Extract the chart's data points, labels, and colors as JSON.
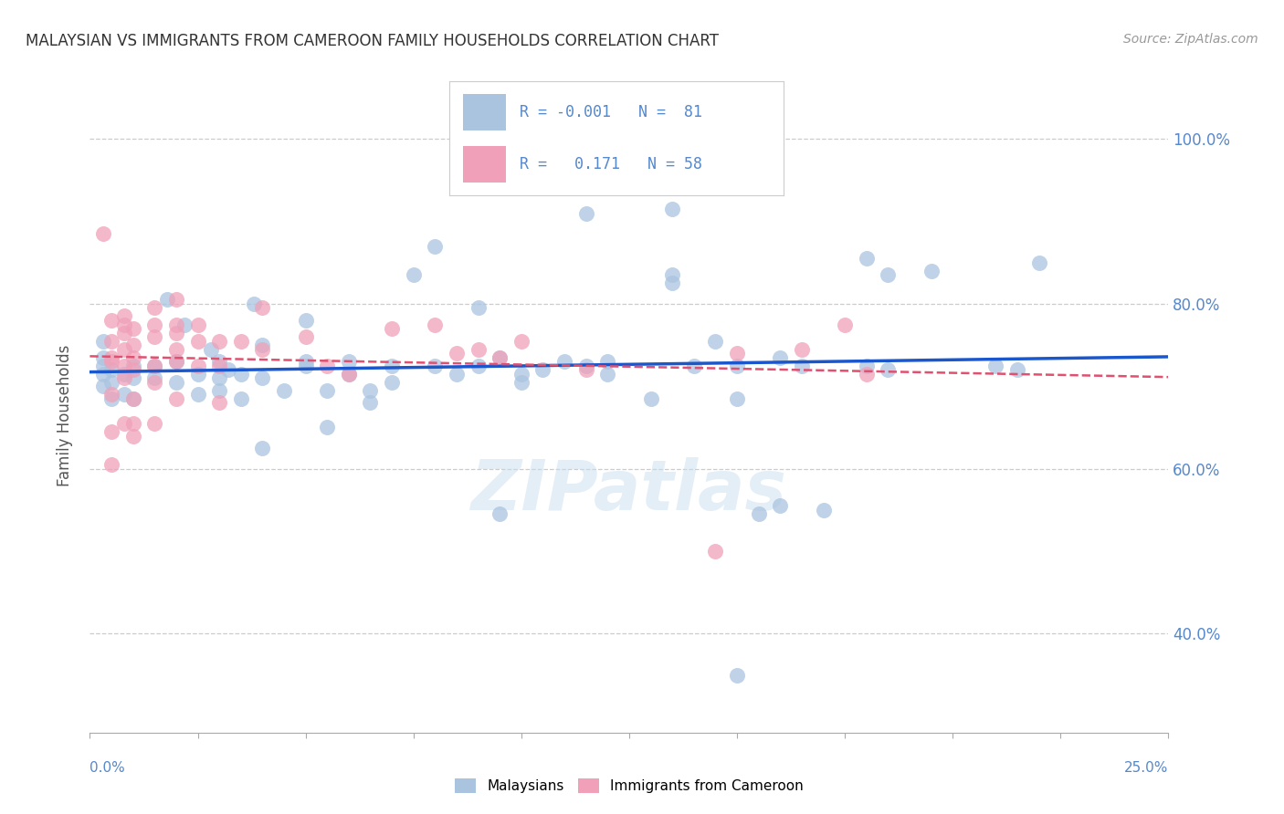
{
  "title": "MALAYSIAN VS IMMIGRANTS FROM CAMEROON FAMILY HOUSEHOLDS CORRELATION CHART",
  "source": "Source: ZipAtlas.com",
  "ylabel": "Family Households",
  "blue_color": "#aac4e0",
  "pink_color": "#f0a0b8",
  "trend_blue_color": "#1a56cc",
  "trend_pink_color": "#e05070",
  "watermark": "ZIPatlas",
  "x_min": 0.0,
  "x_max": 25.0,
  "y_min": 28.0,
  "y_max": 105.0,
  "blue_scatter": [
    [
      0.3,
      71.5
    ],
    [
      0.3,
      70.0
    ],
    [
      0.3,
      72.5
    ],
    [
      0.3,
      73.5
    ],
    [
      0.3,
      75.5
    ],
    [
      0.5,
      70.5
    ],
    [
      0.5,
      72.0
    ],
    [
      0.5,
      68.5
    ],
    [
      0.8,
      71.5
    ],
    [
      0.8,
      69.0
    ],
    [
      1.0,
      72.5
    ],
    [
      1.0,
      71.0
    ],
    [
      1.0,
      68.5
    ],
    [
      1.5,
      72.5
    ],
    [
      1.5,
      71.0
    ],
    [
      1.8,
      80.5
    ],
    [
      2.0,
      73.0
    ],
    [
      2.0,
      70.5
    ],
    [
      2.2,
      77.5
    ],
    [
      2.5,
      69.0
    ],
    [
      2.5,
      71.5
    ],
    [
      2.8,
      74.5
    ],
    [
      3.0,
      73.0
    ],
    [
      3.0,
      71.0
    ],
    [
      3.0,
      69.5
    ],
    [
      3.2,
      72.0
    ],
    [
      3.5,
      71.5
    ],
    [
      3.5,
      68.5
    ],
    [
      3.8,
      80.0
    ],
    [
      4.0,
      75.0
    ],
    [
      4.0,
      71.0
    ],
    [
      4.0,
      62.5
    ],
    [
      4.5,
      69.5
    ],
    [
      5.0,
      72.5
    ],
    [
      5.0,
      78.0
    ],
    [
      5.0,
      73.0
    ],
    [
      5.5,
      69.5
    ],
    [
      5.5,
      65.0
    ],
    [
      6.0,
      73.0
    ],
    [
      6.0,
      71.5
    ],
    [
      6.5,
      69.5
    ],
    [
      6.5,
      68.0
    ],
    [
      7.0,
      72.5
    ],
    [
      7.0,
      70.5
    ],
    [
      7.5,
      83.5
    ],
    [
      8.0,
      72.5
    ],
    [
      8.0,
      87.0
    ],
    [
      8.5,
      71.5
    ],
    [
      9.0,
      79.5
    ],
    [
      9.0,
      72.5
    ],
    [
      9.5,
      73.5
    ],
    [
      9.5,
      54.5
    ],
    [
      10.0,
      71.5
    ],
    [
      10.0,
      70.5
    ],
    [
      10.5,
      72.0
    ],
    [
      11.0,
      73.0
    ],
    [
      11.5,
      72.5
    ],
    [
      12.0,
      73.0
    ],
    [
      12.0,
      71.5
    ],
    [
      13.0,
      68.5
    ],
    [
      13.5,
      83.5
    ],
    [
      13.5,
      82.5
    ],
    [
      14.0,
      72.5
    ],
    [
      14.5,
      75.5
    ],
    [
      15.0,
      72.5
    ],
    [
      15.0,
      68.5
    ],
    [
      15.5,
      54.5
    ],
    [
      16.0,
      73.5
    ],
    [
      16.0,
      55.5
    ],
    [
      16.5,
      72.5
    ],
    [
      17.0,
      55.0
    ],
    [
      18.0,
      85.5
    ],
    [
      18.0,
      72.5
    ],
    [
      18.5,
      83.5
    ],
    [
      18.5,
      72.0
    ],
    [
      19.5,
      84.0
    ],
    [
      21.0,
      72.5
    ],
    [
      22.0,
      85.0
    ],
    [
      13.5,
      91.5
    ],
    [
      11.5,
      91.0
    ],
    [
      15.0,
      35.0
    ],
    [
      21.5,
      72.0
    ]
  ],
  "pink_scatter": [
    [
      0.3,
      88.5
    ],
    [
      0.5,
      73.5
    ],
    [
      0.5,
      78.0
    ],
    [
      0.5,
      75.5
    ],
    [
      0.5,
      73.0
    ],
    [
      0.5,
      69.0
    ],
    [
      0.5,
      64.5
    ],
    [
      0.5,
      60.5
    ],
    [
      0.8,
      78.5
    ],
    [
      0.8,
      77.5
    ],
    [
      0.8,
      76.5
    ],
    [
      0.8,
      74.5
    ],
    [
      0.8,
      72.5
    ],
    [
      0.8,
      71.0
    ],
    [
      0.8,
      65.5
    ],
    [
      1.0,
      77.0
    ],
    [
      1.0,
      75.0
    ],
    [
      1.0,
      73.5
    ],
    [
      1.0,
      72.0
    ],
    [
      1.0,
      68.5
    ],
    [
      1.0,
      65.5
    ],
    [
      1.0,
      64.0
    ],
    [
      1.5,
      79.5
    ],
    [
      1.5,
      77.5
    ],
    [
      1.5,
      76.0
    ],
    [
      1.5,
      72.5
    ],
    [
      1.5,
      70.5
    ],
    [
      1.5,
      65.5
    ],
    [
      2.0,
      80.5
    ],
    [
      2.0,
      77.5
    ],
    [
      2.0,
      76.5
    ],
    [
      2.0,
      74.5
    ],
    [
      2.0,
      73.0
    ],
    [
      2.0,
      68.5
    ],
    [
      2.5,
      77.5
    ],
    [
      2.5,
      75.5
    ],
    [
      2.5,
      72.5
    ],
    [
      3.0,
      75.5
    ],
    [
      3.0,
      72.5
    ],
    [
      3.0,
      68.0
    ],
    [
      3.5,
      75.5
    ],
    [
      4.0,
      79.5
    ],
    [
      4.0,
      74.5
    ],
    [
      5.0,
      76.0
    ],
    [
      5.5,
      72.5
    ],
    [
      6.0,
      71.5
    ],
    [
      7.0,
      77.0
    ],
    [
      8.0,
      77.5
    ],
    [
      8.5,
      74.0
    ],
    [
      9.0,
      74.5
    ],
    [
      9.5,
      73.5
    ],
    [
      10.0,
      75.5
    ],
    [
      11.5,
      72.0
    ],
    [
      14.5,
      50.0
    ],
    [
      15.0,
      74.0
    ],
    [
      16.5,
      74.5
    ],
    [
      17.5,
      77.5
    ],
    [
      18.0,
      71.5
    ]
  ]
}
